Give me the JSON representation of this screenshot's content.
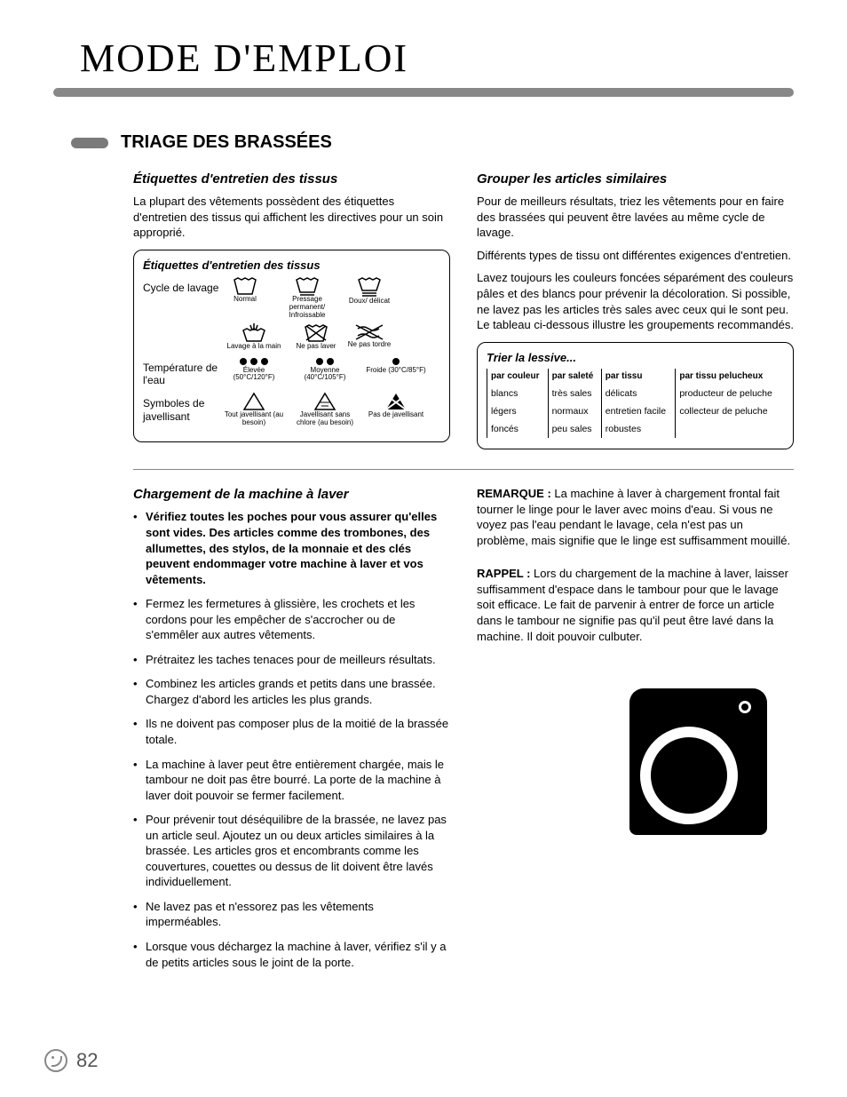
{
  "page": {
    "title": "MODE D'EMPLOI",
    "section_title": "TRIAGE DES BRASSÉES",
    "page_number": "82"
  },
  "left_top": {
    "heading": "Étiquettes d'entretien des tissus",
    "para": "La plupart des vêtements possèdent des étiquettes d'entretien des tissus qui affichent les directives pour un soin approprié."
  },
  "care_box": {
    "title": "Étiquettes d'entretien des tissus",
    "rows": [
      {
        "label": "Cycle de lavage",
        "items": [
          {
            "caption": "Normal"
          },
          {
            "caption": "Pressage permanent/ Infroissable"
          },
          {
            "caption": "Doux/ délicat"
          },
          {
            "caption": "Lavage à la main"
          },
          {
            "caption": "Ne pas laver"
          },
          {
            "caption": "Ne pas tordre"
          }
        ]
      },
      {
        "label": "Température de l'eau",
        "items": [
          {
            "caption": "Élevée (50°C/120°F)"
          },
          {
            "caption": "Moyenne (40°C/105°F)"
          },
          {
            "caption": "Froide (30°C/85°F)"
          }
        ]
      },
      {
        "label": "Symboles de javellisant",
        "items": [
          {
            "caption": "Tout javellisant (au besoin)"
          },
          {
            "caption": "Javellisant sans chlore (au besoin)"
          },
          {
            "caption": "Pas de javellisant"
          }
        ]
      }
    ]
  },
  "right_top": {
    "heading": "Grouper les articles similaires",
    "paras": [
      "Pour de meilleurs résultats, triez les vêtements pour en faire des brassées qui peuvent être lavées au même cycle de lavage.",
      "Différents types de tissu ont différentes exigences d'entretien.",
      "Lavez toujours les couleurs foncées séparément des couleurs pâles et des blancs pour prévenir la décoloration. Si possible, ne lavez pas les articles très sales avec ceux qui le sont peu. Le tableau ci-dessous illustre les groupements recommandés."
    ]
  },
  "sort_box": {
    "title": "Trier la lessive...",
    "headers": [
      "par couleur",
      "par saleté",
      "par tissu",
      "par tissu pelucheux"
    ],
    "rows": [
      [
        "blancs",
        "très sales",
        "délicats",
        "producteur de peluche"
      ],
      [
        "légers",
        "normaux",
        "entretien facile",
        "collecteur de peluche"
      ],
      [
        "foncés",
        "peu sales",
        "robustes",
        ""
      ]
    ]
  },
  "loading": {
    "heading": "Chargement de la machine à laver",
    "bullets": [
      {
        "text": "Vérifiez toutes les poches pour vous assurer qu'elles sont vides. Des articles comme des trombones, des allumettes, des stylos, de la monnaie et des clés peuvent endommager votre machine à laver et vos vêtements.",
        "bold": true
      },
      {
        "text": "Fermez les fermetures à glissière, les crochets et les cordons pour les empêcher de s'accrocher ou de s'emmêler aux autres vêtements.",
        "bold": false
      },
      {
        "text": "Prétraitez les taches tenaces pour de meilleurs résultats.",
        "bold": false
      },
      {
        "text": "Combinez les articles grands et petits dans une brassée. Chargez d'abord les articles les plus grands.",
        "bold": false
      },
      {
        "text": "Ils ne doivent pas composer plus de la moitié de la brassée totale.",
        "bold": false
      },
      {
        "text": "La machine à laver peut être entièrement chargée, mais le tambour ne doit pas être bourré. La porte de la machine à laver doit pouvoir se fermer facilement.",
        "bold": false
      },
      {
        "text": "Pour prévenir tout déséquilibre de la brassée, ne lavez pas un article seul. Ajoutez un ou deux articles similaires à la brassée. Les articles gros et encombrants comme les couvertures, couettes ou dessus de lit doivent être lavés individuellement.",
        "bold": false
      },
      {
        "text": "Ne lavez pas et n'essorez pas les vêtements imperméables.",
        "bold": false
      },
      {
        "text": "Lorsque vous déchargez la machine à laver, vérifiez s'il y a de petits articles sous le joint de la porte.",
        "bold": false
      }
    ]
  },
  "notes": {
    "remarque_label": "REMARQUE :",
    "remarque": " La machine à laver à chargement frontal fait tourner le linge pour le laver avec moins d'eau. Si vous ne voyez pas l'eau pendant le lavage, cela n'est pas un problème, mais signifie que le linge est suffisamment mouillé.",
    "rappel_label": "RAPPEL :",
    "rappel": " Lors du chargement de la machine à laver, laisser suffisamment d'espace dans le tambour pour que le lavage soit efficace. Le fait de parvenir à entrer de force un article dans le tambour ne signifie pas qu'il peut être lavé dans la machine. Il doit pouvoir culbuter."
  },
  "colors": {
    "grey_bar": "#888888",
    "text": "#000000",
    "bg": "#ffffff"
  }
}
